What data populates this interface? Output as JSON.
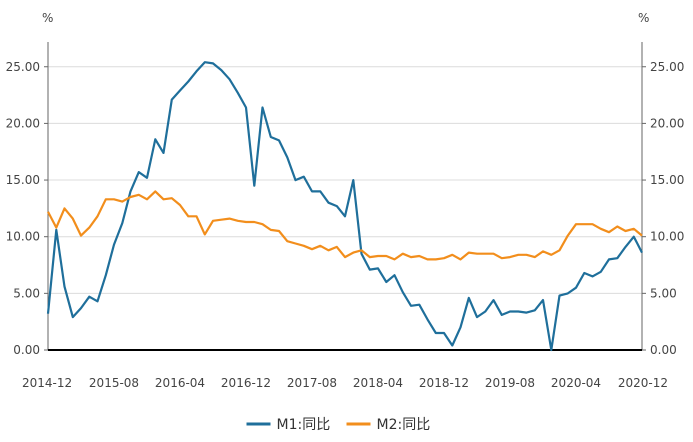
{
  "chart_data": {
    "type": "line",
    "title": "",
    "y_unit_left": "%",
    "y_unit_right": "%",
    "ylim": [
      0,
      27
    ],
    "ytick_labels": [
      "0.00",
      "5.00",
      "10.00",
      "15.00",
      "20.00",
      "25.00"
    ],
    "xtick_labels": [
      "2014-12",
      "2015-08",
      "2016-04",
      "2016-12",
      "2017-08",
      "2018-04",
      "2018-12",
      "2019-08",
      "2020-04",
      "2020-12"
    ],
    "x_start": "2014-12",
    "x_end": "2020-12",
    "grid": true,
    "legend_position": "bottom",
    "months": [
      "2014-12",
      "2015-01",
      "2015-02",
      "2015-03",
      "2015-04",
      "2015-05",
      "2015-06",
      "2015-07",
      "2015-08",
      "2015-09",
      "2015-10",
      "2015-11",
      "2015-12",
      "2016-01",
      "2016-02",
      "2016-03",
      "2016-04",
      "2016-05",
      "2016-06",
      "2016-07",
      "2016-08",
      "2016-09",
      "2016-10",
      "2016-11",
      "2016-12",
      "2017-01",
      "2017-02",
      "2017-03",
      "2017-04",
      "2017-05",
      "2017-06",
      "2017-07",
      "2017-08",
      "2017-09",
      "2017-10",
      "2017-11",
      "2017-12",
      "2018-01",
      "2018-02",
      "2018-03",
      "2018-04",
      "2018-05",
      "2018-06",
      "2018-07",
      "2018-08",
      "2018-09",
      "2018-10",
      "2018-11",
      "2018-12",
      "2019-01",
      "2019-02",
      "2019-03",
      "2019-04",
      "2019-05",
      "2019-06",
      "2019-07",
      "2019-08",
      "2019-09",
      "2019-10",
      "2019-11",
      "2019-12",
      "2020-01",
      "2020-02",
      "2020-03",
      "2020-04",
      "2020-05",
      "2020-06",
      "2020-07",
      "2020-08",
      "2020-09",
      "2020-10",
      "2020-11",
      "2020-12"
    ],
    "series": [
      {
        "name": "M1:同比",
        "color": "#1f6f9b",
        "values": [
          3.2,
          10.6,
          5.6,
          2.9,
          3.7,
          4.7,
          4.3,
          6.6,
          9.3,
          11.2,
          14.0,
          15.7,
          15.2,
          18.6,
          17.4,
          22.1,
          22.9,
          23.7,
          24.6,
          25.4,
          25.3,
          24.7,
          23.9,
          22.7,
          21.4,
          14.5,
          21.4,
          18.8,
          18.5,
          17.0,
          15.0,
          15.3,
          14.0,
          14.0,
          13.0,
          12.7,
          11.8,
          15.0,
          8.5,
          7.1,
          7.2,
          6.0,
          6.6,
          5.1,
          3.9,
          4.0,
          2.7,
          1.5,
          1.5,
          0.4,
          2.0,
          4.6,
          2.9,
          3.4,
          4.4,
          3.1,
          3.4,
          3.4,
          3.3,
          3.5,
          4.4,
          0.0,
          4.8,
          5.0,
          5.5,
          6.8,
          6.5,
          6.9,
          8.0,
          8.1,
          9.1,
          10.0,
          8.6
        ]
      },
      {
        "name": "M2:同比",
        "color": "#f28e1c",
        "values": [
          12.2,
          10.8,
          12.5,
          11.6,
          10.1,
          10.8,
          11.8,
          13.3,
          13.3,
          13.1,
          13.5,
          13.7,
          13.3,
          14.0,
          13.3,
          13.4,
          12.8,
          11.8,
          11.8,
          10.2,
          11.4,
          11.5,
          11.6,
          11.4,
          11.3,
          11.3,
          11.1,
          10.6,
          10.5,
          9.6,
          9.4,
          9.2,
          8.9,
          9.2,
          8.8,
          9.1,
          8.2,
          8.6,
          8.8,
          8.2,
          8.3,
          8.3,
          8.0,
          8.5,
          8.2,
          8.3,
          8.0,
          8.0,
          8.1,
          8.4,
          8.0,
          8.6,
          8.5,
          8.5,
          8.5,
          8.1,
          8.2,
          8.4,
          8.4,
          8.2,
          8.7,
          8.4,
          8.8,
          10.1,
          11.1,
          11.1,
          11.1,
          10.7,
          10.4,
          10.9,
          10.5,
          10.7,
          10.1
        ]
      }
    ]
  }
}
